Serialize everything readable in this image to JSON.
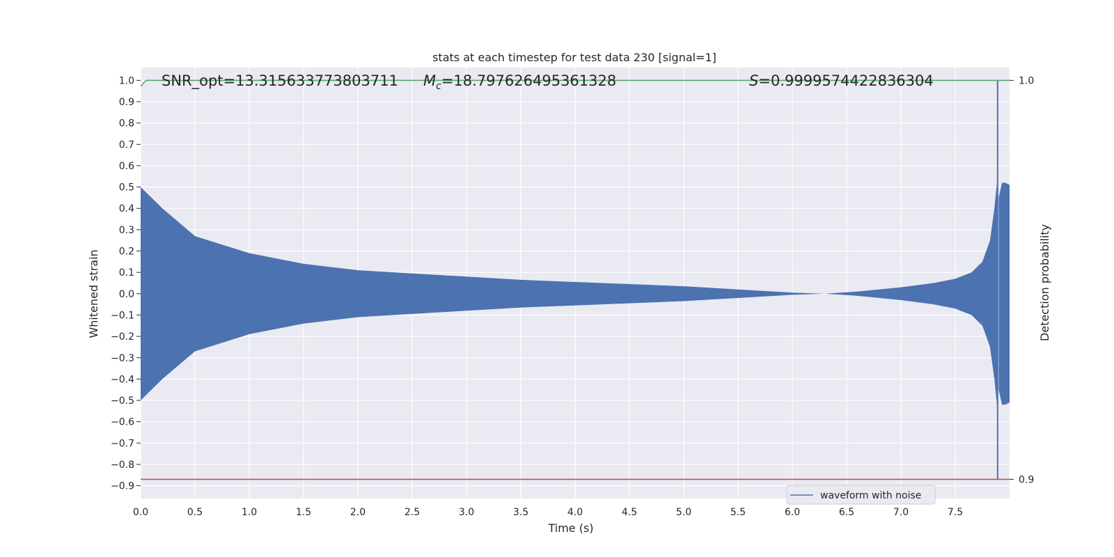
{
  "chart_data": {
    "type": "line",
    "title": "stats at each timestep for test data 230 [signal=1]",
    "xlabel": "Time (s)",
    "ylabel": "Whitened strain",
    "y2label": "Detection probability",
    "xlim": [
      0.0,
      8.0
    ],
    "ylim": [
      -0.96,
      1.06
    ],
    "y2lim": [
      0.9,
      1.0
    ],
    "x_ticks": [
      "0.0",
      "0.5",
      "1.0",
      "1.5",
      "2.0",
      "2.5",
      "3.0",
      "3.5",
      "4.0",
      "4.5",
      "5.0",
      "5.5",
      "6.0",
      "6.5",
      "7.0",
      "7.5"
    ],
    "y_ticks": [
      "1.0",
      "0.9",
      "0.8",
      "0.7",
      "0.6",
      "0.5",
      "0.4",
      "0.3",
      "0.2",
      "0.1",
      "0.0",
      "−0.1",
      "−0.2",
      "−0.3",
      "−0.4",
      "−0.5",
      "−0.6",
      "−0.7",
      "−0.8",
      "−0.9"
    ],
    "y2_ticks": [
      "1.0",
      "0.9"
    ],
    "grid": true,
    "legend_position": "bottom-right",
    "annotations": {
      "snr": "SNR_opt=13.315633773803711",
      "mc_label": "M",
      "mc_sub": "c",
      "mc_value": "=18.797626495361328",
      "s_label": "S",
      "s_value": "=0.9999574422836304"
    },
    "series": [
      {
        "name": "waveform with noise",
        "color": "#4c72b0",
        "kind": "envelope",
        "x": [
          0.0,
          0.2,
          0.5,
          1.0,
          1.5,
          2.0,
          2.5,
          3.0,
          3.5,
          4.0,
          4.5,
          5.0,
          5.5,
          6.0,
          6.3,
          6.6,
          7.0,
          7.3,
          7.5,
          7.65,
          7.75,
          7.82,
          7.86,
          7.89
        ],
        "upper": [
          0.5,
          0.4,
          0.27,
          0.19,
          0.14,
          0.11,
          0.095,
          0.08,
          0.065,
          0.055,
          0.045,
          0.035,
          0.02,
          0.005,
          0.0,
          0.01,
          0.03,
          0.05,
          0.07,
          0.1,
          0.15,
          0.25,
          0.4,
          0.55
        ],
        "lower": [
          -0.5,
          -0.4,
          -0.27,
          -0.19,
          -0.14,
          -0.11,
          -0.095,
          -0.08,
          -0.065,
          -0.055,
          -0.045,
          -0.035,
          -0.02,
          -0.005,
          0.0,
          -0.01,
          -0.03,
          -0.05,
          -0.07,
          -0.1,
          -0.15,
          -0.25,
          -0.4,
          -0.55
        ],
        "spike": {
          "x": 7.89,
          "y_max": 1.0,
          "y_min": -0.87
        },
        "tail": {
          "x": [
            7.9,
            7.93,
            7.96,
            8.0
          ],
          "upper": [
            0.45,
            0.52,
            0.52,
            0.51
          ],
          "lower": [
            -0.45,
            -0.52,
            -0.52,
            -0.51
          ]
        }
      },
      {
        "name": "detection probability",
        "color": "#55a868",
        "axis": "y2",
        "x": [
          0.0,
          0.05,
          7.89,
          7.9,
          8.0
        ],
        "values": [
          0.9985,
          1.0,
          1.0,
          1.0,
          1.0
        ]
      },
      {
        "name": "threshold",
        "color": "#c44e52",
        "axis": "y2",
        "x": [
          0.0,
          8.0
        ],
        "values": [
          0.9,
          0.9
        ]
      }
    ]
  }
}
